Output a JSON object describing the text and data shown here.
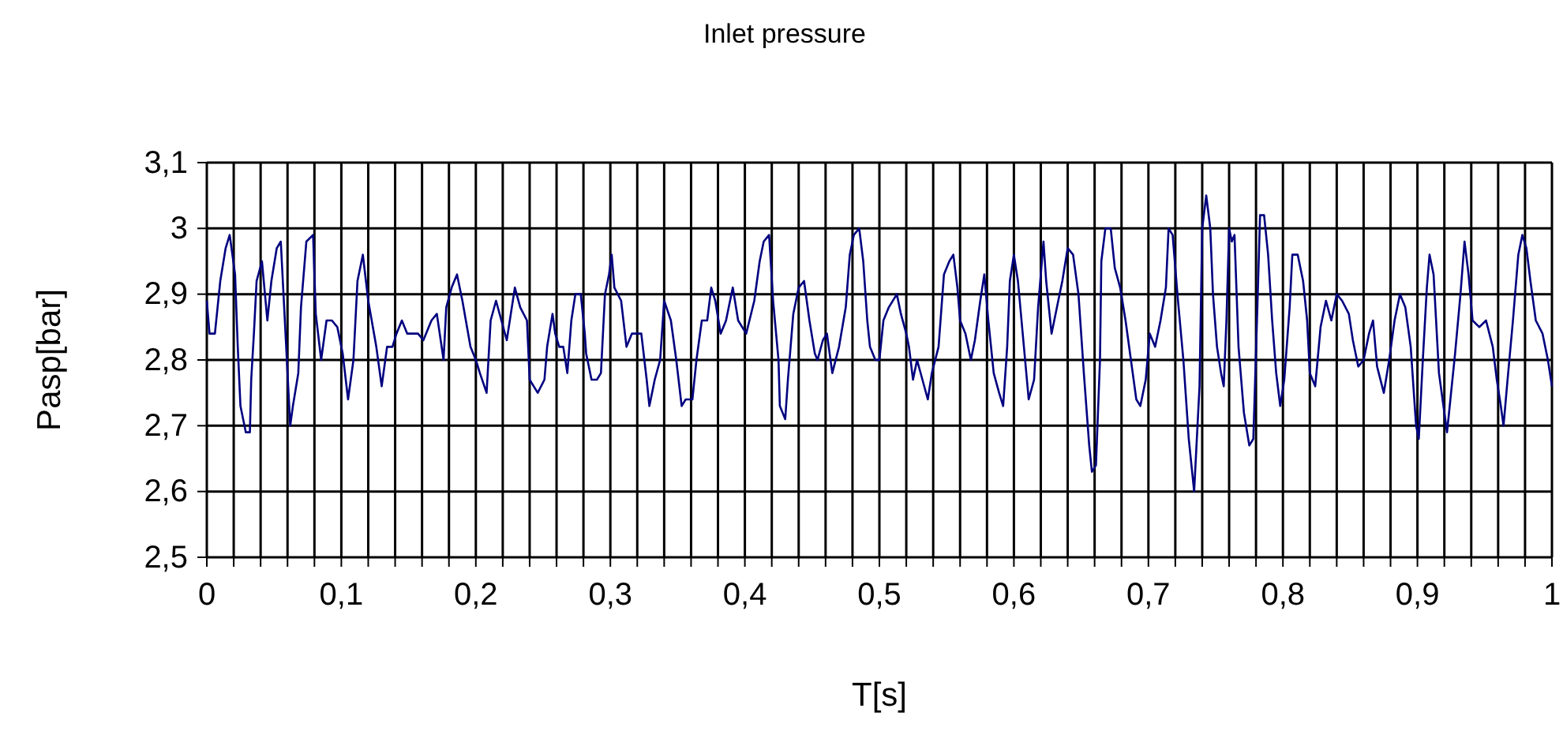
{
  "chart_data": {
    "type": "line",
    "title": "Inlet pressure",
    "xlabel": "T[s]",
    "ylabel": "Pasp[bar]",
    "xlim": [
      0,
      1
    ],
    "ylim": [
      2.5,
      3.1
    ],
    "xticks": [
      0,
      {
        "value": 0.02,
        "label": null
      },
      {
        "value": 0.04,
        "label": null
      },
      {
        "value": 0.06,
        "label": null
      },
      {
        "value": 0.08,
        "label": null
      },
      {
        "value": 0.1,
        "label": "0,1"
      },
      {
        "value": 0.12,
        "label": null
      },
      {
        "value": 0.14,
        "label": null
      },
      {
        "value": 0.16,
        "label": null
      },
      {
        "value": 0.18,
        "label": null
      },
      {
        "value": 0.2,
        "label": "0,2"
      },
      {
        "value": 0.22,
        "label": null
      },
      {
        "value": 0.24,
        "label": null
      },
      {
        "value": 0.26,
        "label": null
      },
      {
        "value": 0.28,
        "label": null
      },
      {
        "value": 0.3,
        "label": "0,3"
      },
      {
        "value": 0.32,
        "label": null
      },
      {
        "value": 0.34,
        "label": null
      },
      {
        "value": 0.36,
        "label": null
      },
      {
        "value": 0.38,
        "label": null
      },
      {
        "value": 0.4,
        "label": "0,4"
      },
      {
        "value": 0.42,
        "label": null
      },
      {
        "value": 0.44,
        "label": null
      },
      {
        "value": 0.46,
        "label": null
      },
      {
        "value": 0.48,
        "label": null
      },
      {
        "value": 0.5,
        "label": "0,5"
      },
      {
        "value": 0.52,
        "label": null
      },
      {
        "value": 0.54,
        "label": null
      },
      {
        "value": 0.56,
        "label": null
      },
      {
        "value": 0.58,
        "label": null
      },
      {
        "value": 0.6,
        "label": "0,6"
      },
      {
        "value": 0.62,
        "label": null
      },
      {
        "value": 0.64,
        "label": null
      },
      {
        "value": 0.66,
        "label": null
      },
      {
        "value": 0.68,
        "label": null
      },
      {
        "value": 0.7,
        "label": "0,7"
      },
      {
        "value": 0.72,
        "label": null
      },
      {
        "value": 0.74,
        "label": null
      },
      {
        "value": 0.76,
        "label": null
      },
      {
        "value": 0.78,
        "label": null
      },
      {
        "value": 0.8,
        "label": "0,8"
      },
      {
        "value": 0.82,
        "label": null
      },
      {
        "value": 0.84,
        "label": null
      },
      {
        "value": 0.86,
        "label": null
      },
      {
        "value": 0.88,
        "label": null
      },
      {
        "value": 0.9,
        "label": "0,9"
      },
      {
        "value": 0.92,
        "label": null
      },
      {
        "value": 0.94,
        "label": null
      },
      {
        "value": 0.96,
        "label": null
      },
      {
        "value": 0.98,
        "label": null
      },
      1
    ],
    "yticks": [
      {
        "value": 2.5,
        "label": "2,5"
      },
      {
        "value": 2.6,
        "label": "2,6"
      },
      {
        "value": 2.7,
        "label": "2,7"
      },
      {
        "value": 2.8,
        "label": "2,8"
      },
      {
        "value": 2.9,
        "label": "2,9"
      },
      3,
      {
        "value": 3.1,
        "label": "3,1"
      }
    ],
    "grid": true,
    "marker": "none",
    "line_style": "solid",
    "series": [
      {
        "color": "#000080",
        "x": [
          0,
          0.002,
          0.006,
          0.008,
          0.01,
          0.014,
          0.017,
          0.021,
          0.023,
          0.025,
          0.029,
          0.032,
          0.033,
          0.035,
          0.037,
          0.041,
          0.045,
          0.048,
          0.052,
          0.055,
          0.058,
          0.062,
          0.064,
          0.068,
          0.07,
          0.074,
          0.079,
          0.081,
          0.085,
          0.089,
          0.093,
          0.097,
          0.101,
          0.105,
          0.109,
          0.112,
          0.116,
          0.12,
          0.126,
          0.13,
          0.134,
          0.138,
          0.141,
          0.145,
          0.149,
          0.157,
          0.161,
          0.167,
          0.171,
          0.176,
          0.178,
          0.182,
          0.186,
          0.19,
          0.196,
          0.2,
          0.203,
          0.208,
          0.211,
          0.215,
          0.219,
          0.223,
          0.229,
          0.233,
          0.238,
          0.24,
          0.246,
          0.251,
          0.253,
          0.257,
          0.259,
          0.262,
          0.265,
          0.268,
          0.271,
          0.274,
          0.278,
          0.281,
          0.282,
          0.286,
          0.29,
          0.293,
          0.296,
          0.299,
          0.301,
          0.303,
          0.308,
          0.312,
          0.316,
          0.323,
          0.327,
          0.329,
          0.333,
          0.337,
          0.34,
          0.345,
          0.349,
          0.353,
          0.356,
          0.361,
          0.364,
          0.368,
          0.372,
          0.375,
          0.378,
          0.382,
          0.386,
          0.391,
          0.395,
          0.401,
          0.407,
          0.411,
          0.414,
          0.418,
          0.421,
          0.425,
          0.426,
          0.43,
          0.432,
          0.436,
          0.44,
          0.444,
          0.448,
          0.452,
          0.454,
          0.458,
          0.461,
          0.465,
          0.47,
          0.475,
          0.478,
          0.481,
          0.485,
          0.488,
          0.491,
          0.493,
          0.497,
          0.5,
          0.503,
          0.507,
          0.513,
          0.516,
          0.52,
          0.522,
          0.525,
          0.528,
          0.532,
          0.536,
          0.539,
          0.544,
          0.548,
          0.552,
          0.555,
          0.558,
          0.56,
          0.564,
          0.568,
          0.571,
          0.575,
          0.578,
          0.581,
          0.585,
          0.589,
          0.592,
          0.595,
          0.597,
          0.6,
          0.603,
          0.607,
          0.611,
          0.615,
          0.618,
          0.622,
          0.624,
          0.628,
          0.632,
          0.636,
          0.64,
          0.644,
          0.648,
          0.652,
          0.656,
          0.658,
          0.661,
          0.664,
          0.665,
          0.668,
          0.672,
          0.675,
          0.679,
          0.683,
          0.687,
          0.691,
          0.694,
          0.698,
          0.701,
          0.705,
          0.709,
          0.713,
          0.715,
          0.718,
          0.722,
          0.726,
          0.73,
          0.734,
          0.738,
          0.74,
          0.743,
          0.746,
          0.748,
          0.751,
          0.754,
          0.756,
          0.758,
          0.76,
          0.762,
          0.764,
          0.767,
          0.771,
          0.775,
          0.778,
          0.781,
          0.783,
          0.786,
          0.789,
          0.792,
          0.795,
          0.798,
          0.801,
          0.805,
          0.807,
          0.811,
          0.815,
          0.818,
          0.82,
          0.824,
          0.828,
          0.832,
          0.836,
          0.84,
          0.844,
          0.849,
          0.852,
          0.856,
          0.86,
          0.864,
          0.867,
          0.87,
          0.875,
          0.879,
          0.883,
          0.887,
          0.891,
          0.895,
          0.899,
          0.901,
          0.904,
          0.907,
          0.909,
          0.912,
          0.916,
          0.922,
          0.925,
          0.928,
          0.932,
          0.935,
          0.938,
          0.941,
          0.946,
          0.951,
          0.956,
          0.959,
          0.962,
          0.964,
          0.967,
          0.971,
          0.975,
          0.978,
          0.981,
          0.984,
          0.988,
          0.993,
          0.997,
          1.0
        ],
        "values": [
          2.89,
          2.84,
          2.84,
          2.88,
          2.92,
          2.97,
          2.99,
          2.93,
          2.82,
          2.73,
          2.69,
          2.69,
          2.77,
          2.84,
          2.92,
          2.95,
          2.86,
          2.92,
          2.97,
          2.98,
          2.86,
          2.7,
          2.73,
          2.78,
          2.88,
          2.98,
          2.99,
          2.87,
          2.8,
          2.86,
          2.86,
          2.85,
          2.81,
          2.74,
          2.8,
          2.92,
          2.96,
          2.89,
          2.82,
          2.76,
          2.82,
          2.82,
          2.84,
          2.86,
          2.84,
          2.84,
          2.83,
          2.86,
          2.87,
          2.8,
          2.88,
          2.91,
          2.93,
          2.89,
          2.82,
          2.8,
          2.78,
          2.75,
          2.86,
          2.89,
          2.86,
          2.83,
          2.91,
          2.88,
          2.86,
          2.77,
          2.75,
          2.77,
          2.82,
          2.87,
          2.84,
          2.82,
          2.82,
          2.78,
          2.86,
          2.9,
          2.9,
          2.84,
          2.81,
          2.77,
          2.77,
          2.78,
          2.9,
          2.93,
          2.96,
          2.91,
          2.89,
          2.82,
          2.84,
          2.84,
          2.77,
          2.73,
          2.77,
          2.8,
          2.89,
          2.86,
          2.8,
          2.73,
          2.74,
          2.74,
          2.8,
          2.86,
          2.86,
          2.91,
          2.89,
          2.84,
          2.86,
          2.91,
          2.86,
          2.84,
          2.89,
          2.95,
          2.98,
          2.99,
          2.89,
          2.8,
          2.73,
          2.71,
          2.77,
          2.87,
          2.91,
          2.92,
          2.86,
          2.81,
          2.8,
          2.83,
          2.84,
          2.78,
          2.82,
          2.88,
          2.96,
          2.99,
          3.0,
          2.95,
          2.86,
          2.82,
          2.8,
          2.8,
          2.86,
          2.88,
          2.9,
          2.87,
          2.84,
          2.82,
          2.77,
          2.8,
          2.77,
          2.74,
          2.78,
          2.82,
          2.93,
          2.95,
          2.96,
          2.91,
          2.86,
          2.84,
          2.8,
          2.83,
          2.89,
          2.93,
          2.86,
          2.78,
          2.75,
          2.73,
          2.82,
          2.92,
          2.96,
          2.92,
          2.83,
          2.74,
          2.77,
          2.88,
          2.98,
          2.92,
          2.84,
          2.88,
          2.92,
          2.97,
          2.96,
          2.9,
          2.78,
          2.67,
          2.63,
          2.64,
          2.8,
          2.95,
          3.0,
          3.0,
          2.94,
          2.91,
          2.86,
          2.8,
          2.74,
          2.73,
          2.77,
          2.84,
          2.82,
          2.86,
          2.91,
          3.0,
          2.99,
          2.89,
          2.8,
          2.68,
          2.6,
          2.76,
          3.0,
          3.05,
          3.0,
          2.9,
          2.82,
          2.78,
          2.76,
          2.86,
          3.0,
          2.98,
          2.99,
          2.82,
          2.72,
          2.67,
          2.68,
          2.88,
          3.02,
          3.02,
          2.96,
          2.86,
          2.78,
          2.73,
          2.77,
          2.88,
          2.96,
          2.96,
          2.92,
          2.86,
          2.78,
          2.76,
          2.85,
          2.89,
          2.86,
          2.9,
          2.89,
          2.87,
          2.83,
          2.79,
          2.8,
          2.84,
          2.86,
          2.79,
          2.75,
          2.8,
          2.86,
          2.9,
          2.88,
          2.82,
          2.7,
          2.68,
          2.8,
          2.91,
          2.96,
          2.93,
          2.78,
          2.69,
          2.75,
          2.81,
          2.9,
          2.98,
          2.93,
          2.86,
          2.85,
          2.86,
          2.82,
          2.77,
          2.73,
          2.7,
          2.77,
          2.86,
          2.96,
          2.99,
          2.97,
          2.92,
          2.86,
          2.84,
          2.8,
          2.76
        ]
      }
    ]
  }
}
